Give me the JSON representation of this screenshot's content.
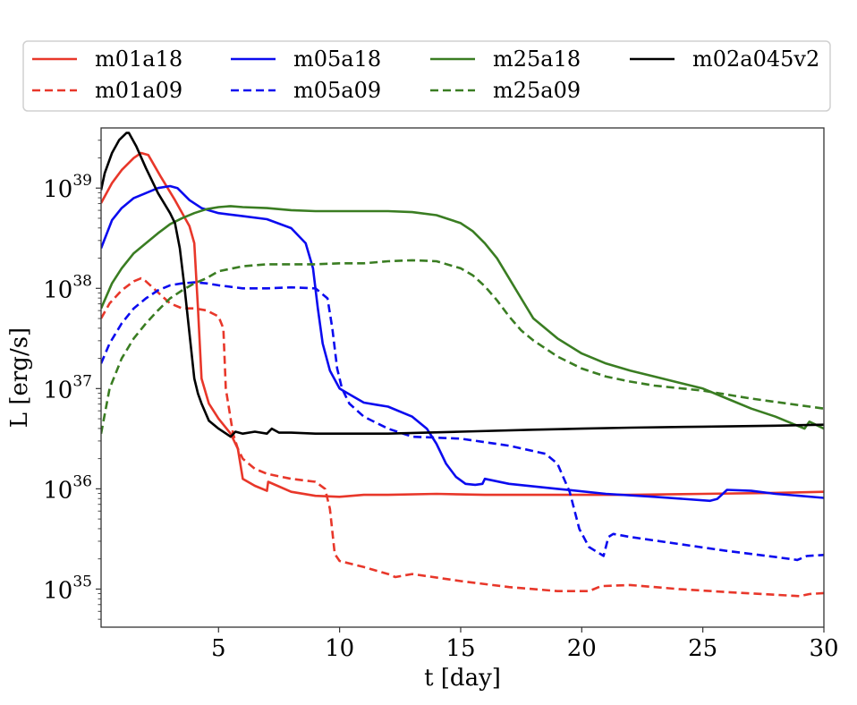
{
  "chart_data": {
    "type": "line",
    "title": "",
    "xlabel": "t [day]",
    "ylabel": "L [erg/s]",
    "xscale": "linear",
    "yscale": "log",
    "xlim": [
      0.15,
      30
    ],
    "ylim_log10": [
      34.62,
      39.6
    ],
    "grid": false,
    "legend_placement": "top, above plot, 4 columns",
    "x_ticks": [
      {
        "value": 5,
        "label": "5"
      },
      {
        "value": 10,
        "label": "10"
      },
      {
        "value": 15,
        "label": "15"
      },
      {
        "value": 20,
        "label": "20"
      },
      {
        "value": 25,
        "label": "25"
      },
      {
        "value": 30,
        "label": "30"
      }
    ],
    "y_ticks": [
      {
        "log10": 35,
        "base": "10",
        "exp": "35"
      },
      {
        "log10": 36,
        "base": "10",
        "exp": "36"
      },
      {
        "log10": 37,
        "base": "10",
        "exp": "37"
      },
      {
        "log10": 38,
        "base": "10",
        "exp": "38"
      },
      {
        "log10": 39,
        "base": "10",
        "exp": "39"
      }
    ],
    "series": [
      {
        "name": "m01a18",
        "color": "#e8372a",
        "dash": "solid",
        "t": [
          0.15,
          0.6,
          1.0,
          1.5,
          1.8,
          2.1,
          2.6,
          3.2,
          3.8,
          4.0,
          4.15,
          4.3,
          4.6,
          5.0,
          5.5,
          5.8,
          6.0,
          6.5,
          7.0,
          7.05,
          8.0,
          9.0,
          10.0,
          11.0,
          12.0,
          14.0,
          16.0,
          18.0,
          20.0,
          22.0,
          25.0,
          28.0,
          30.0
        ],
        "log10L": [
          38.85,
          39.05,
          39.18,
          39.3,
          39.35,
          39.33,
          39.12,
          38.88,
          38.62,
          38.45,
          37.8,
          37.1,
          36.85,
          36.7,
          36.55,
          36.4,
          36.1,
          36.03,
          35.98,
          36.07,
          35.97,
          35.93,
          35.92,
          35.94,
          35.94,
          35.95,
          35.94,
          35.94,
          35.94,
          35.94,
          35.95,
          35.96,
          35.97
        ]
      },
      {
        "name": "m01a09",
        "color": "#e8372a",
        "dash": "dashed",
        "t": [
          0.15,
          0.5,
          1.0,
          1.5,
          1.8,
          2.0,
          2.5,
          3.0,
          3.5,
          4.0,
          4.5,
          5.0,
          5.2,
          5.3,
          5.6,
          5.8,
          6.0,
          6.5,
          7.0,
          8.0,
          9.0,
          9.4,
          9.6,
          9.8,
          10.0,
          11.0,
          12.0,
          12.3,
          13.0,
          15.0,
          17.0,
          19.0,
          20.3,
          20.8,
          22.0,
          24.0,
          26.0,
          29.0,
          29.4,
          30.0
        ],
        "log10L": [
          37.7,
          37.85,
          37.98,
          38.07,
          38.1,
          38.07,
          37.96,
          37.85,
          37.8,
          37.8,
          37.78,
          37.72,
          37.6,
          37.0,
          36.55,
          36.4,
          36.3,
          36.2,
          36.15,
          36.1,
          36.07,
          36.0,
          35.8,
          35.35,
          35.28,
          35.22,
          35.15,
          35.12,
          35.15,
          35.08,
          35.02,
          34.98,
          34.98,
          35.03,
          35.04,
          35.0,
          34.97,
          34.93,
          34.95,
          34.96
        ]
      },
      {
        "name": "m05a18",
        "color": "#0b0bef",
        "dash": "solid",
        "t": [
          0.15,
          0.6,
          1.0,
          1.5,
          2.0,
          2.5,
          3.0,
          3.3,
          3.8,
          4.3,
          5.0,
          6.0,
          7.0,
          8.0,
          8.6,
          8.9,
          9.1,
          9.3,
          9.6,
          10.0,
          10.5,
          11.0,
          11.5,
          12.0,
          13.0,
          13.6,
          14.0,
          14.4,
          14.8,
          15.2,
          15.6,
          15.9,
          16.0,
          17.0,
          19.0,
          21.0,
          23.0,
          25.3,
          25.6,
          26.0,
          27.0,
          28.0,
          29.0,
          30.0
        ],
        "log10L": [
          38.4,
          38.68,
          38.8,
          38.9,
          38.95,
          39.0,
          39.02,
          39.0,
          38.88,
          38.8,
          38.75,
          38.72,
          38.69,
          38.6,
          38.45,
          38.2,
          37.8,
          37.45,
          37.18,
          37.0,
          36.93,
          36.86,
          36.84,
          36.82,
          36.72,
          36.6,
          36.45,
          36.25,
          36.12,
          36.05,
          36.04,
          36.05,
          36.1,
          36.05,
          36.0,
          35.95,
          35.92,
          35.88,
          35.9,
          35.99,
          35.98,
          35.95,
          35.93,
          35.91
        ]
      },
      {
        "name": "m05a09",
        "color": "#0b0bef",
        "dash": "dashed",
        "t": [
          0.15,
          0.5,
          1.0,
          1.5,
          2.0,
          2.5,
          3.0,
          3.5,
          4.0,
          4.5,
          5.0,
          6.0,
          7.0,
          8.0,
          9.0,
          9.5,
          9.7,
          9.9,
          10.1,
          10.4,
          11.0,
          12.0,
          13.0,
          15.0,
          17.0,
          18.5,
          19.0,
          19.5,
          19.9,
          20.3,
          20.9,
          21.1,
          21.3,
          22.0,
          24.0,
          26.0,
          28.0,
          28.9,
          29.3,
          30.0
        ],
        "log10L": [
          37.25,
          37.45,
          37.65,
          37.8,
          37.9,
          37.98,
          38.03,
          38.05,
          38.06,
          38.05,
          38.03,
          38.0,
          38.0,
          38.01,
          38.0,
          37.9,
          37.6,
          37.2,
          37.0,
          36.85,
          36.72,
          36.6,
          36.52,
          36.5,
          36.43,
          36.35,
          36.25,
          35.97,
          35.6,
          35.42,
          35.33,
          35.52,
          35.55,
          35.52,
          35.45,
          35.38,
          35.32,
          35.29,
          35.33,
          35.34
        ]
      },
      {
        "name": "m25a18",
        "color": "#3a7d22",
        "dash": "solid",
        "t": [
          0.15,
          0.6,
          1.0,
          1.5,
          2.0,
          2.5,
          3.0,
          3.5,
          4.0,
          4.5,
          5.0,
          5.5,
          6.0,
          7.0,
          8.0,
          9.0,
          10.0,
          11.0,
          12.0,
          13.0,
          14.0,
          15.0,
          15.5,
          16.0,
          16.5,
          17.0,
          17.5,
          18.0,
          19.0,
          20.0,
          21.0,
          22.0,
          23.0,
          24.0,
          25.0,
          26.0,
          27.0,
          28.0,
          29.2,
          29.4,
          30.0
        ],
        "log10L": [
          37.8,
          38.05,
          38.2,
          38.35,
          38.45,
          38.55,
          38.64,
          38.7,
          38.75,
          38.79,
          38.81,
          38.82,
          38.81,
          38.8,
          38.78,
          38.77,
          38.77,
          38.77,
          38.77,
          38.76,
          38.73,
          38.65,
          38.57,
          38.45,
          38.3,
          38.1,
          37.9,
          37.7,
          37.5,
          37.35,
          37.25,
          37.18,
          37.12,
          37.06,
          37.0,
          36.9,
          36.8,
          36.72,
          36.6,
          36.67,
          36.6
        ]
      },
      {
        "name": "m25a09",
        "color": "#3a7d22",
        "dash": "dashed",
        "t": [
          0.15,
          0.5,
          1.0,
          1.5,
          2.0,
          2.5,
          3.0,
          3.5,
          4.0,
          4.5,
          5.0,
          6.0,
          7.0,
          8.0,
          9.0,
          10.0,
          11.0,
          12.0,
          13.0,
          14.0,
          15.0,
          15.5,
          16.0,
          16.5,
          17.0,
          17.5,
          18.0,
          19.0,
          20.0,
          21.0,
          22.0,
          23.0,
          25.0,
          27.0,
          30.0
        ],
        "log10L": [
          36.55,
          37.0,
          37.3,
          37.5,
          37.65,
          37.78,
          37.9,
          37.98,
          38.05,
          38.1,
          38.17,
          38.22,
          38.24,
          38.24,
          38.24,
          38.25,
          38.25,
          38.27,
          38.28,
          38.27,
          38.2,
          38.13,
          38.02,
          37.88,
          37.72,
          37.58,
          37.48,
          37.32,
          37.2,
          37.12,
          37.07,
          37.03,
          36.98,
          36.9,
          36.8
        ]
      },
      {
        "name": "m02a045v2",
        "color": "#000000",
        "dash": "solid",
        "t": [
          0.15,
          0.3,
          0.6,
          0.9,
          1.2,
          1.3,
          1.6,
          2.0,
          2.5,
          3.0,
          3.2,
          3.4,
          3.6,
          3.8,
          4.0,
          4.15,
          4.3,
          4.6,
          5.0,
          5.5,
          5.7,
          6.0,
          6.5,
          7.0,
          7.2,
          7.5,
          8.0,
          9.0,
          10.0,
          12.0,
          15.0,
          18.0,
          20.0,
          22.0,
          25.0,
          28.0,
          30.0
        ],
        "log10L": [
          38.98,
          39.15,
          39.35,
          39.48,
          39.55,
          39.55,
          39.42,
          39.2,
          38.95,
          38.75,
          38.65,
          38.4,
          38.0,
          37.55,
          37.1,
          36.95,
          36.85,
          36.68,
          36.6,
          36.52,
          36.57,
          36.55,
          36.57,
          36.55,
          36.6,
          36.56,
          36.56,
          36.55,
          36.55,
          36.55,
          36.57,
          36.59,
          36.6,
          36.61,
          36.62,
          36.63,
          36.64
        ]
      }
    ]
  }
}
